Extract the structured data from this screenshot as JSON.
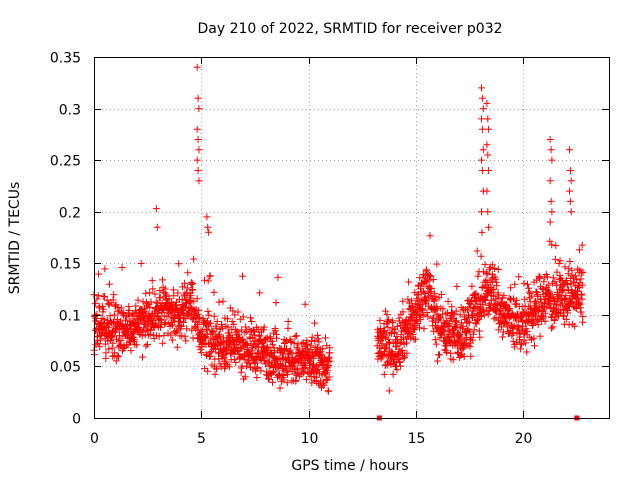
{
  "chart_data": {
    "type": "scatter",
    "title": "Day 210 of 2022, SRMTID for receiver p032",
    "xlabel": "GPS time / hours",
    "ylabel": "SRMTID / TECUs",
    "xlim": [
      0,
      24
    ],
    "ylim": [
      0,
      0.35
    ],
    "xticks": [
      0,
      5,
      10,
      15,
      20
    ],
    "xtick_labels": [
      "0",
      "5",
      "10",
      "15",
      "20"
    ],
    "yticks": [
      0,
      0.05,
      0.1,
      0.15,
      0.2,
      0.25,
      0.3,
      0.35
    ],
    "ytick_labels": [
      "0",
      "0.05",
      "0.1",
      "0.15",
      "0.2",
      "0.25",
      "0.3",
      "0.35"
    ],
    "grid": true,
    "marker": "plus",
    "color": "#ff0000",
    "series": [
      {
        "name": "SRMTID",
        "segments": [
          {
            "t_start": 0.0,
            "t_end": 11.0,
            "step_h": 0.01,
            "level_knots": [
              [
                0,
                0.09
              ],
              [
                1,
                0.085
              ],
              [
                2,
                0.09
              ],
              [
                3,
                0.1
              ],
              [
                4,
                0.1
              ],
              [
                4.5,
                0.11
              ],
              [
                5,
                0.08
              ],
              [
                6,
                0.07
              ],
              [
                7,
                0.07
              ],
              [
                8,
                0.065
              ],
              [
                9,
                0.055
              ],
              [
                10,
                0.055
              ],
              [
                11,
                0.05
              ]
            ],
            "spread": 0.045
          },
          {
            "t_start": 13.2,
            "t_end": 22.8,
            "step_h": 0.01,
            "level_knots": [
              [
                13.2,
                0.07
              ],
              [
                14,
                0.07
              ],
              [
                15,
                0.1
              ],
              [
                15.5,
                0.13
              ],
              [
                16,
                0.09
              ],
              [
                17,
                0.08
              ],
              [
                18,
                0.11
              ],
              [
                18.5,
                0.13
              ],
              [
                19,
                0.1
              ],
              [
                20,
                0.09
              ],
              [
                20.5,
                0.1
              ],
              [
                21,
                0.12
              ],
              [
                21.5,
                0.11
              ],
              [
                22,
                0.12
              ],
              [
                22.8,
                0.12
              ]
            ],
            "spread": 0.05
          }
        ],
        "spikes": [
          {
            "t": 4.85,
            "values": [
              0.34,
              0.31,
              0.3,
              0.28,
              0.27,
              0.26,
              0.25,
              0.24,
              0.23
            ]
          },
          {
            "t": 5.3,
            "values": [
              0.195,
              0.185,
              0.18
            ]
          },
          {
            "t": 2.95,
            "values": [
              0.203,
              0.185
            ]
          },
          {
            "t": 18.1,
            "values": [
              0.32,
              0.31,
              0.3,
              0.29,
              0.28,
              0.26,
              0.25,
              0.24,
              0.22,
              0.2
            ]
          },
          {
            "t": 18.35,
            "values": [
              0.305,
              0.29,
              0.28,
              0.265,
              0.255,
              0.24,
              0.22,
              0.2,
              0.185
            ]
          },
          {
            "t": 21.3,
            "values": [
              0.27,
              0.26,
              0.25,
              0.23,
              0.21,
              0.2,
              0.19
            ]
          },
          {
            "t": 22.2,
            "values": [
              0.26,
              0.24,
              0.23,
              0.22,
              0.21,
              0.2
            ]
          }
        ],
        "baseline_markers": [
          13.3,
          22.5
        ]
      }
    ]
  }
}
